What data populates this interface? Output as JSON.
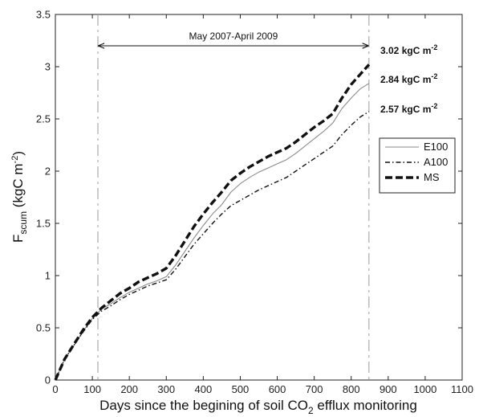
{
  "chart_data": {
    "type": "line",
    "xlabel_main": "Days since the begining of soil CO",
    "xlabel_sub": "2",
    "xlabel_rest": " efflux monitoring",
    "ylabel_main": "F",
    "ylabel_sub": "scum",
    "ylabel_unit": " (kgC m",
    "ylabel_sup": "-2",
    "ylabel_close": ")",
    "xlim": [
      0,
      1100
    ],
    "ylim": [
      0,
      3.5
    ],
    "xticks": [
      0,
      100,
      200,
      300,
      400,
      500,
      600,
      700,
      800,
      900,
      1000,
      1100
    ],
    "yticks": [
      0,
      0.5,
      1,
      1.5,
      2,
      2.5,
      3,
      3.5
    ],
    "xtick_labels": [
      "0",
      "100",
      "200",
      "300",
      "400",
      "500",
      "600",
      "700",
      "800",
      "900",
      "1000",
      "1100"
    ],
    "ytick_labels": [
      "0",
      "0.5",
      "1",
      "1.5",
      "2",
      "2.5",
      "3",
      "3.5"
    ],
    "grid": false,
    "legend_position": "right",
    "period": {
      "label": "May 2007-April 2009",
      "start": 115,
      "end": 848
    },
    "series": [
      {
        "name": "E100",
        "style": "solid-thin",
        "x": [
          0,
          25,
          50,
          75,
          100,
          125,
          150,
          175,
          200,
          225,
          250,
          275,
          300,
          325,
          350,
          375,
          400,
          425,
          450,
          475,
          500,
          525,
          550,
          575,
          600,
          625,
          650,
          675,
          700,
          725,
          750,
          775,
          800,
          825,
          848
        ],
        "y": [
          0,
          0.2,
          0.33,
          0.47,
          0.59,
          0.68,
          0.73,
          0.79,
          0.84,
          0.88,
          0.92,
          0.95,
          0.99,
          1.1,
          1.23,
          1.36,
          1.48,
          1.59,
          1.68,
          1.8,
          1.88,
          1.94,
          1.99,
          2.03,
          2.07,
          2.11,
          2.17,
          2.24,
          2.31,
          2.38,
          2.46,
          2.6,
          2.7,
          2.79,
          2.84
        ]
      },
      {
        "name": "A100",
        "style": "dash-dot",
        "x": [
          0,
          25,
          50,
          75,
          100,
          125,
          150,
          175,
          200,
          225,
          250,
          275,
          300,
          325,
          350,
          375,
          400,
          425,
          450,
          475,
          500,
          525,
          550,
          575,
          600,
          625,
          650,
          675,
          700,
          725,
          750,
          775,
          800,
          825,
          848
        ],
        "y": [
          0,
          0.2,
          0.33,
          0.46,
          0.58,
          0.66,
          0.71,
          0.77,
          0.82,
          0.86,
          0.9,
          0.93,
          0.96,
          1.06,
          1.18,
          1.3,
          1.4,
          1.5,
          1.59,
          1.67,
          1.72,
          1.77,
          1.82,
          1.86,
          1.9,
          1.94,
          2.0,
          2.06,
          2.12,
          2.18,
          2.24,
          2.35,
          2.44,
          2.52,
          2.57
        ]
      },
      {
        "name": "MS",
        "style": "dashed-thick",
        "x": [
          0,
          25,
          50,
          75,
          100,
          125,
          150,
          175,
          200,
          225,
          250,
          275,
          300,
          325,
          350,
          375,
          400,
          425,
          450,
          475,
          500,
          525,
          550,
          575,
          600,
          625,
          650,
          675,
          700,
          725,
          750,
          775,
          800,
          825,
          848
        ],
        "y": [
          0,
          0.2,
          0.34,
          0.48,
          0.6,
          0.69,
          0.76,
          0.83,
          0.88,
          0.94,
          0.98,
          1.02,
          1.07,
          1.19,
          1.33,
          1.47,
          1.59,
          1.7,
          1.8,
          1.91,
          1.98,
          2.04,
          2.09,
          2.14,
          2.18,
          2.22,
          2.28,
          2.35,
          2.42,
          2.48,
          2.55,
          2.7,
          2.83,
          2.93,
          3.02
        ]
      }
    ],
    "end_labels": [
      {
        "value": "3.02",
        "unit": " kgC m",
        "sup": "-2"
      },
      {
        "value": "2.84",
        "unit": " kgC m",
        "sup": "-2"
      },
      {
        "value": "2.57",
        "unit": " kgC m",
        "sup": "-2"
      }
    ],
    "colors": {
      "E100": "#8a8a8a",
      "A100": "#111111",
      "MS": "#111111",
      "guides": "#999999"
    }
  }
}
